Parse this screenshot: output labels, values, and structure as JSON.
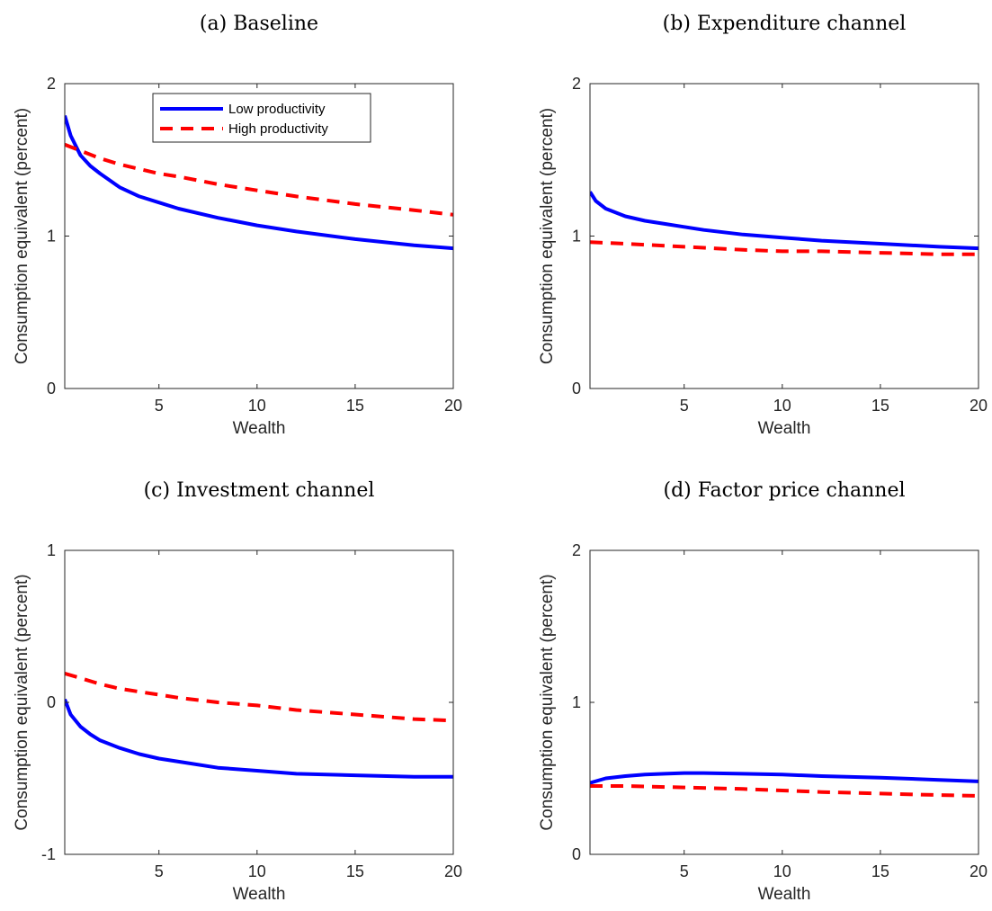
{
  "colors": {
    "low": "#0000ff",
    "high": "#ff0000",
    "axis": "#262626"
  },
  "chart_data": [
    {
      "type": "line",
      "title": "(a) Baseline",
      "xlabel": "Wealth",
      "ylabel": "Consumption equivalent (percent)",
      "xlim": [
        0.2,
        20
      ],
      "ylim": [
        0,
        2
      ],
      "xticks": [
        "5",
        "10",
        "15",
        "20"
      ],
      "yticks": [
        "0",
        "1",
        "2"
      ],
      "grid": false,
      "legend_position": "top-center",
      "series": [
        {
          "name": "Low productivity",
          "style": "solid",
          "color": "#0000ff",
          "x": [
            0.2,
            0.5,
            1,
            1.5,
            2,
            3,
            4,
            5,
            6,
            8,
            10,
            12,
            15,
            18,
            20
          ],
          "y": [
            1.79,
            1.66,
            1.53,
            1.46,
            1.41,
            1.32,
            1.26,
            1.22,
            1.18,
            1.12,
            1.07,
            1.03,
            0.98,
            0.94,
            0.92
          ]
        },
        {
          "name": "High productivity",
          "style": "dashed",
          "color": "#ff0000",
          "x": [
            0.2,
            1,
            2,
            3,
            4,
            5,
            6,
            8,
            10,
            12,
            15,
            18,
            20
          ],
          "y": [
            1.6,
            1.56,
            1.51,
            1.47,
            1.44,
            1.41,
            1.39,
            1.34,
            1.3,
            1.26,
            1.21,
            1.17,
            1.14
          ]
        }
      ]
    },
    {
      "type": "line",
      "title": "(b) Expenditure channel",
      "xlabel": "Wealth",
      "ylabel": "Consumption equivalent (percent)",
      "xlim": [
        0.2,
        20
      ],
      "ylim": [
        0,
        2
      ],
      "xticks": [
        "5",
        "10",
        "15",
        "20"
      ],
      "yticks": [
        "0",
        "1",
        "2"
      ],
      "grid": false,
      "series": [
        {
          "name": "Low productivity",
          "style": "solid",
          "color": "#0000ff",
          "x": [
            0.2,
            0.5,
            1,
            2,
            3,
            4,
            5,
            6,
            8,
            10,
            12,
            15,
            18,
            20
          ],
          "y": [
            1.29,
            1.23,
            1.18,
            1.13,
            1.1,
            1.08,
            1.06,
            1.04,
            1.01,
            0.99,
            0.97,
            0.95,
            0.93,
            0.92
          ]
        },
        {
          "name": "High productivity",
          "style": "dashed",
          "color": "#ff0000",
          "x": [
            0.2,
            2,
            5,
            8,
            10,
            12,
            15,
            18,
            20
          ],
          "y": [
            0.96,
            0.95,
            0.93,
            0.91,
            0.9,
            0.9,
            0.89,
            0.88,
            0.88
          ]
        }
      ]
    },
    {
      "type": "line",
      "title": "(c) Investment channel",
      "xlabel": "Wealth",
      "ylabel": "Consumption equivalent (percent)",
      "xlim": [
        0.2,
        20
      ],
      "ylim": [
        -1,
        1
      ],
      "xticks": [
        "5",
        "10",
        "15",
        "20"
      ],
      "yticks": [
        "-1",
        "0",
        "1"
      ],
      "grid": false,
      "series": [
        {
          "name": "Low productivity",
          "style": "solid",
          "color": "#0000ff",
          "x": [
            0.2,
            0.5,
            1,
            1.5,
            2,
            3,
            4,
            5,
            6,
            8,
            10,
            12,
            15,
            18,
            20
          ],
          "y": [
            0.02,
            -0.08,
            -0.16,
            -0.21,
            -0.25,
            -0.3,
            -0.34,
            -0.37,
            -0.39,
            -0.43,
            -0.45,
            -0.47,
            -0.48,
            -0.49,
            -0.49
          ]
        },
        {
          "name": "High productivity",
          "style": "dashed",
          "color": "#ff0000",
          "x": [
            0.2,
            1,
            2,
            3,
            4,
            5,
            6,
            8,
            10,
            12,
            15,
            18,
            20
          ],
          "y": [
            0.19,
            0.16,
            0.12,
            0.09,
            0.07,
            0.05,
            0.03,
            0.0,
            -0.02,
            -0.05,
            -0.08,
            -0.11,
            -0.12
          ]
        }
      ]
    },
    {
      "type": "line",
      "title": "(d) Factor price channel",
      "xlabel": "Wealth",
      "ylabel": "Consumption equivalent (percent)",
      "xlim": [
        0.2,
        20
      ],
      "ylim": [
        0,
        2
      ],
      "xticks": [
        "5",
        "10",
        "15",
        "20"
      ],
      "yticks": [
        "0",
        "1",
        "2"
      ],
      "grid": false,
      "series": [
        {
          "name": "Low productivity",
          "style": "solid",
          "color": "#0000ff",
          "x": [
            0.2,
            1,
            2,
            3,
            4,
            5,
            6,
            8,
            10,
            12,
            15,
            18,
            20
          ],
          "y": [
            0.47,
            0.5,
            0.515,
            0.525,
            0.53,
            0.535,
            0.535,
            0.53,
            0.525,
            0.515,
            0.505,
            0.49,
            0.48
          ]
        },
        {
          "name": "High productivity",
          "style": "dashed",
          "color": "#ff0000",
          "x": [
            0.2,
            2,
            5,
            8,
            10,
            12,
            15,
            18,
            20
          ],
          "y": [
            0.45,
            0.45,
            0.44,
            0.43,
            0.42,
            0.41,
            0.4,
            0.39,
            0.385
          ]
        }
      ]
    }
  ]
}
